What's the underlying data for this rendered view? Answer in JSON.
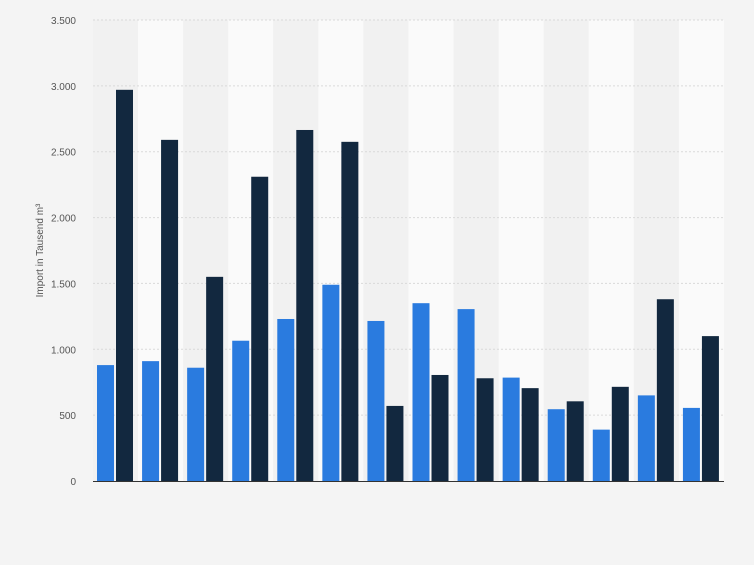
{
  "chart_data": {
    "type": "bar",
    "title": "",
    "xlabel": "",
    "ylabel": "Import in Tausend m³",
    "ylim": [
      0,
      3500
    ],
    "yticks": [
      0,
      500,
      1000,
      1500,
      2000,
      2500,
      3000,
      3500
    ],
    "ytick_labels": [
      "0",
      "500",
      "1.000",
      "1.500",
      "2.000",
      "2.500",
      "3.000",
      "3.500"
    ],
    "categories": [
      "",
      "",
      "",
      "",
      "",
      "",
      "",
      "",
      "",
      "",
      "",
      "",
      "",
      ""
    ],
    "series": [
      {
        "color": "#2a7bdf",
        "values": [
          880,
          910,
          860,
          1065,
          1230,
          1490,
          1215,
          1350,
          1305,
          785,
          545,
          390,
          650,
          555
        ]
      },
      {
        "color": "#12283f",
        "values": [
          2970,
          2590,
          1550,
          2310,
          2665,
          2575,
          570,
          805,
          780,
          705,
          605,
          715,
          1380,
          1100
        ]
      }
    ],
    "grid": true,
    "legend": "none",
    "colors": {
      "background": "#f4f4f4",
      "band_light": "#fafafa",
      "band_dark": "#f1f1f1",
      "grid": "#d9d9d9",
      "axis": "#333333",
      "tick_text": "#555555"
    }
  }
}
